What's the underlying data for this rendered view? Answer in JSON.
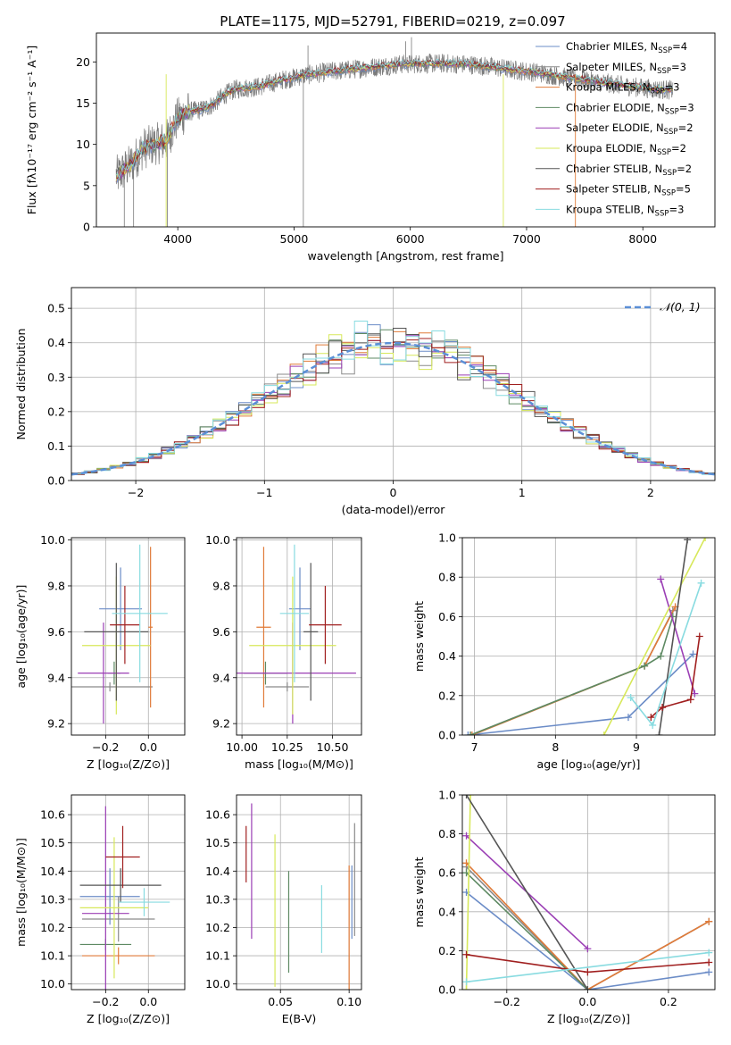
{
  "title": "PLATE=1175, MJD=52791, FIBERID=0219, z=0.097",
  "colors": {
    "Chabrier MILES": "#6b8cc7",
    "Salpeter MILES": "#8a8a8a",
    "Kroupa MILES": "#e07b39",
    "Chabrier ELODIE": "#5e8a63",
    "Salpeter ELODIE": "#9b3fb5",
    "Kroupa ELODIE": "#d7e85a",
    "Chabrier STELIB": "#555555",
    "Salpeter STELIB": "#a01f1f",
    "Kroupa STELIB": "#88dbe0",
    "gaussian": "#5b8fd6",
    "grid": "#b0b0b0"
  },
  "chart_data": [
    {
      "id": "spectrum",
      "type": "line",
      "xlabel": "wavelength [Angstrom, rest frame]",
      "ylabel": "Flux [fλ10⁻¹⁷ erg cm⁻² s⁻¹ A⁻¹]",
      "xlim": [
        3300,
        8620
      ],
      "ylim": [
        0,
        23.5
      ],
      "xticks": [
        "4000",
        "5000",
        "6000",
        "7000",
        "8000"
      ],
      "yticks": [
        "0",
        "5",
        "10",
        "15",
        "20"
      ],
      "continuum": {
        "x": [
          3480,
          3600,
          3700,
          3800,
          3900,
          4000,
          4100,
          4200,
          4300,
          4400,
          4500,
          4700,
          4900,
          5100,
          5300,
          5500,
          5700,
          5900,
          6100,
          6300,
          6500,
          6700,
          6900,
          7100,
          7300,
          7500,
          7700,
          7900,
          8100,
          8250
        ],
        "y": [
          6.2,
          7.6,
          9.5,
          10.0,
          10.4,
          13.2,
          14.0,
          14.2,
          14.8,
          16.0,
          16.7,
          17.0,
          17.8,
          18.4,
          18.8,
          19.1,
          19.4,
          19.7,
          19.8,
          19.8,
          19.7,
          19.4,
          19.0,
          18.7,
          18.2,
          17.8,
          17.4,
          17.0,
          16.7,
          16.6
        ]
      },
      "legend": [
        {
          "label": "Chabrier MILES, N",
          "sub": "SSP",
          "tail": "=4"
        },
        {
          "label": "Salpeter MILES, N",
          "sub": "SSP",
          "tail": "=3"
        },
        {
          "label": "Kroupa MILES, N",
          "sub": "SSP",
          "tail": "=3"
        },
        {
          "label": "Chabrier ELODIE, N",
          "sub": "SSP",
          "tail": "=3"
        },
        {
          "label": "Salpeter ELODIE, N",
          "sub": "SSP",
          "tail": "=2"
        },
        {
          "label": "Kroupa ELODIE, N",
          "sub": "SSP",
          "tail": "=2"
        },
        {
          "label": "Chabrier STELIB, N",
          "sub": "SSP",
          "tail": "=2"
        },
        {
          "label": "Salpeter STELIB, N",
          "sub": "SSP",
          "tail": "=5"
        },
        {
          "label": "Kroupa STELIB, N",
          "sub": "SSP",
          "tail": "=3"
        }
      ]
    },
    {
      "id": "residuals",
      "type": "step",
      "xlabel": "(data-model)/error",
      "ylabel": "Normed distribution",
      "xlim": [
        -2.5,
        2.5
      ],
      "ylim": [
        0,
        0.56
      ],
      "xticks": [
        "−2",
        "−1",
        "0",
        "1",
        "2"
      ],
      "yticks": [
        "0.0",
        "0.1",
        "0.2",
        "0.3",
        "0.4",
        "0.5"
      ],
      "bin_width": 0.1,
      "legend": "𝒩(0, 1)"
    },
    {
      "id": "age_vs_Z",
      "type": "errorbar",
      "xlabel": "Z [log₁₀(Z/Z⊙)]",
      "ylabel": "age  [log₁₀(age/yr)]",
      "xlim": [
        -0.36,
        0.17
      ],
      "ylim": [
        9.15,
        10.01
      ],
      "xticks": [
        "−0.2",
        "0.0"
      ],
      "yticks": [
        "9.2",
        "9.4",
        "9.6",
        "9.8",
        "10.0"
      ],
      "points": [
        {
          "model": "Chabrier MILES",
          "x": -0.13,
          "y": 9.7,
          "xerr": 0.1,
          "yerr": 0.18
        },
        {
          "model": "Salpeter MILES",
          "x": -0.18,
          "y": 9.36,
          "xerr": 0.2,
          "yerr": 0.02
        },
        {
          "model": "Kroupa MILES",
          "x": 0.01,
          "y": 9.62,
          "xerr": 0.01,
          "yerr": 0.35
        },
        {
          "model": "Chabrier ELODIE",
          "x": -0.16,
          "y": 9.42,
          "xerr": 0.03,
          "yerr": 0.05
        },
        {
          "model": "Salpeter ELODIE",
          "x": -0.21,
          "y": 9.42,
          "xerr": 0.12,
          "yerr": 0.22
        },
        {
          "model": "Kroupa ELODIE",
          "x": -0.15,
          "y": 9.54,
          "xerr": 0.16,
          "yerr": 0.3
        },
        {
          "model": "Chabrier STELIB",
          "x": -0.15,
          "y": 9.6,
          "xerr": 0.15,
          "yerr": 0.3
        },
        {
          "model": "Salpeter STELIB",
          "x": -0.11,
          "y": 9.63,
          "xerr": 0.07,
          "yerr": 0.17
        },
        {
          "model": "Kroupa STELIB",
          "x": -0.04,
          "y": 9.68,
          "xerr": 0.13,
          "yerr": 0.3
        }
      ]
    },
    {
      "id": "age_vs_mass",
      "type": "errorbar",
      "xlabel": "mass [log₁₀(M/M⊙)]",
      "ylabel": "",
      "xlim": [
        9.97,
        10.66
      ],
      "ylim": [
        9.15,
        10.01
      ],
      "xticks": [
        "10.00",
        "10.25",
        "10.50"
      ],
      "yticks": [
        "9.2",
        "9.4",
        "9.6",
        "9.8",
        "10.0"
      ],
      "points": [
        {
          "model": "Chabrier MILES",
          "x": 10.32,
          "y": 9.7,
          "xerr": 0.06,
          "yerr": 0.18
        },
        {
          "model": "Salpeter MILES",
          "x": 10.25,
          "y": 9.36,
          "xerr": 0.12,
          "yerr": 0.02
        },
        {
          "model": "Kroupa MILES",
          "x": 10.12,
          "y": 9.62,
          "xerr": 0.04,
          "yerr": 0.35
        },
        {
          "model": "Chabrier ELODIE",
          "x": 10.13,
          "y": 9.42,
          "xerr": 0.12,
          "yerr": 0.05
        },
        {
          "model": "Salpeter ELODIE",
          "x": 10.28,
          "y": 9.42,
          "xerr": 0.35,
          "yerr": 0.22
        },
        {
          "model": "Kroupa ELODIE",
          "x": 10.28,
          "y": 9.54,
          "xerr": 0.24,
          "yerr": 0.3
        },
        {
          "model": "Chabrier STELIB",
          "x": 10.38,
          "y": 9.6,
          "xerr": 0.04,
          "yerr": 0.3
        },
        {
          "model": "Salpeter STELIB",
          "x": 10.46,
          "y": 9.63,
          "xerr": 0.09,
          "yerr": 0.17
        },
        {
          "model": "Kroupa STELIB",
          "x": 10.29,
          "y": 9.68,
          "xerr": 0.08,
          "yerr": 0.3
        }
      ]
    },
    {
      "id": "weight_vs_age",
      "type": "line",
      "xlabel": "age  [log₁₀(age/yr)]",
      "ylabel": "mass weight",
      "xlim": [
        6.85,
        9.97
      ],
      "ylim": [
        0,
        1
      ],
      "xticks": [
        "7",
        "8",
        "9"
      ],
      "yticks": [
        "0.0",
        "0.2",
        "0.4",
        "0.6",
        "0.8",
        "1.0"
      ],
      "series": [
        {
          "model": "Chabrier MILES",
          "x": [
            6.92,
            8.9,
            9.7
          ],
          "y": [
            0.0,
            0.09,
            0.41
          ]
        },
        {
          "model": "Salpeter MILES",
          "x": [
            6.95,
            9.1,
            9.45
          ],
          "y": [
            0.0,
            0.35,
            0.63
          ]
        },
        {
          "model": "Kroupa MILES",
          "x": [
            6.97,
            9.1,
            9.48
          ],
          "y": [
            0.0,
            0.35,
            0.65
          ]
        },
        {
          "model": "Chabrier ELODIE",
          "x": [
            6.95,
            9.1,
            9.3,
            9.45
          ],
          "y": [
            0.0,
            0.35,
            0.4,
            0.6
          ]
        },
        {
          "model": "Salpeter ELODIE",
          "x": [
            9.3,
            9.72
          ],
          "y": [
            0.79,
            0.21
          ]
        },
        {
          "model": "Kroupa ELODIE",
          "x": [
            8.6,
            9.85
          ],
          "y": [
            0.0,
            1.0
          ]
        },
        {
          "model": "Chabrier STELIB",
          "x": [
            9.28,
            9.63
          ],
          "y": [
            0.0,
            0.99
          ]
        },
        {
          "model": "Salpeter STELIB",
          "x": [
            9.18,
            9.32,
            9.67,
            9.78
          ],
          "y": [
            0.09,
            0.14,
            0.18,
            0.5
          ]
        },
        {
          "model": "Kroupa STELIB",
          "x": [
            8.93,
            9.2,
            9.8
          ],
          "y": [
            0.19,
            0.05,
            0.77
          ]
        }
      ]
    },
    {
      "id": "mass_vs_Z",
      "type": "errorbar",
      "xlabel": "Z [log₁₀(Z/Z⊙)]",
      "ylabel": "mass [log₁₀(M/M⊙)]",
      "xlim": [
        -0.36,
        0.17
      ],
      "ylim": [
        9.98,
        10.67
      ],
      "xticks": [
        "−0.2",
        "0.0"
      ],
      "yticks": [
        "10.0",
        "10.1",
        "10.2",
        "10.3",
        "10.4",
        "10.5",
        "10.6"
      ],
      "points": [
        {
          "model": "Chabrier MILES",
          "x": -0.18,
          "y": 10.31,
          "xerr": 0.14,
          "yerr": 0.1
        },
        {
          "model": "Salpeter MILES",
          "x": -0.14,
          "y": 10.23,
          "xerr": 0.17,
          "yerr": 0.08
        },
        {
          "model": "Kroupa MILES",
          "x": -0.14,
          "y": 10.1,
          "xerr": 0.17,
          "yerr": 0.03
        },
        {
          "model": "Chabrier ELODIE",
          "x": -0.2,
          "y": 10.14,
          "xerr": 0.12,
          "yerr": 0.02
        },
        {
          "model": "Salpeter ELODIE",
          "x": -0.2,
          "y": 10.25,
          "xerr": 0.11,
          "yerr": 0.38
        },
        {
          "model": "Kroupa ELODIE",
          "x": -0.16,
          "y": 10.27,
          "xerr": 0.16,
          "yerr": 0.25
        },
        {
          "model": "Chabrier STELIB",
          "x": -0.13,
          "y": 10.35,
          "xerr": 0.19,
          "yerr": 0.06
        },
        {
          "model": "Salpeter STELIB",
          "x": -0.12,
          "y": 10.45,
          "xerr": 0.08,
          "yerr": 0.11
        },
        {
          "model": "Kroupa STELIB",
          "x": -0.02,
          "y": 10.29,
          "xerr": 0.12,
          "yerr": 0.05
        }
      ]
    },
    {
      "id": "mass_vs_ebv",
      "type": "errorbar",
      "xlabel": "E(B-V)",
      "ylabel": "",
      "xlim": [
        0.018,
        0.109
      ],
      "ylim": [
        9.98,
        10.67
      ],
      "xticks": [
        "0.05",
        "0.10"
      ],
      "yticks": [
        "10.0",
        "10.1",
        "10.2",
        "10.3",
        "10.4",
        "10.5",
        "10.6"
      ],
      "points": [
        {
          "model": "Chabrier MILES",
          "x": 0.102,
          "y": 10.29,
          "xerr": 0,
          "yerr": 0.13
        },
        {
          "model": "Kroupa MILES",
          "x": 0.1,
          "y": 10.2,
          "xerr": 0,
          "yerr": 0.22
        },
        {
          "model": "Salpeter MILES",
          "x": 0.104,
          "y": 10.37,
          "xerr": 0,
          "yerr": 0.2
        },
        {
          "model": "Chabrier ELODIE",
          "x": 0.056,
          "y": 10.22,
          "xerr": 0,
          "yerr": 0.18
        },
        {
          "model": "Salpeter ELODIE",
          "x": 0.029,
          "y": 10.4,
          "xerr": 0,
          "yerr": 0.24
        },
        {
          "model": "Kroupa ELODIE",
          "x": 0.046,
          "y": 10.26,
          "xerr": 0,
          "yerr": 0.27
        },
        {
          "model": "Salpeter STELIB",
          "x": 0.025,
          "y": 10.46,
          "xerr": 0,
          "yerr": 0.1
        },
        {
          "model": "Kroupa STELIB",
          "x": 0.08,
          "y": 10.23,
          "xerr": 0,
          "yerr": 0.12
        }
      ]
    },
    {
      "id": "weight_vs_Z",
      "type": "line",
      "xlabel": "Z [log₁₀(Z/Z⊙)]",
      "ylabel": "mass weight",
      "xlim": [
        -0.31,
        0.315
      ],
      "ylim": [
        0,
        1
      ],
      "xticks": [
        "−0.2",
        "0.0",
        "0.2"
      ],
      "yticks": [
        "0.0",
        "0.2",
        "0.4",
        "0.6",
        "0.8",
        "1.0"
      ],
      "series": [
        {
          "model": "Chabrier MILES",
          "x": [
            -0.3,
            0.0,
            0.3
          ],
          "y": [
            0.5,
            0.0,
            0.09
          ]
        },
        {
          "model": "Salpeter MILES",
          "x": [
            -0.3,
            0.0,
            0.3
          ],
          "y": [
            0.63,
            0.0,
            0.35
          ]
        },
        {
          "model": "Kroupa MILES",
          "x": [
            -0.3,
            0.0,
            0.3
          ],
          "y": [
            0.65,
            0.0,
            0.35
          ]
        },
        {
          "model": "Chabrier ELODIE",
          "x": [
            -0.3,
            0.0
          ],
          "y": [
            0.6,
            0.0
          ]
        },
        {
          "model": "Salpeter ELODIE",
          "x": [
            -0.3,
            0.0
          ],
          "y": [
            0.79,
            0.21
          ]
        },
        {
          "model": "Kroupa ELODIE",
          "x": [
            -0.3,
            -0.29
          ],
          "y": [
            0.0,
            1.0
          ]
        },
        {
          "model": "Chabrier STELIB",
          "x": [
            -0.3,
            0.0
          ],
          "y": [
            1.0,
            0.0
          ]
        },
        {
          "model": "Salpeter STELIB",
          "x": [
            -0.3,
            0.0,
            0.3
          ],
          "y": [
            0.18,
            0.09,
            0.14
          ]
        },
        {
          "model": "Kroupa STELIB",
          "x": [
            -0.3,
            0.3
          ],
          "y": [
            0.04,
            0.19
          ]
        }
      ]
    }
  ]
}
